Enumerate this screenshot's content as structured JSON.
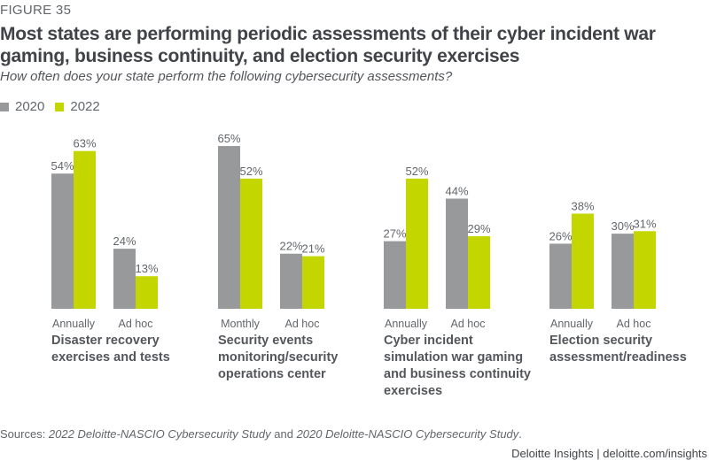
{
  "figure_label": "FIGURE 35",
  "title": "Most states are performing periodic assessments of their cyber incident war gaming, business continuity, and election security exercises",
  "subtitle": "How often does your state perform the following cybersecurity assessments?",
  "colors": {
    "2020": "#97999b",
    "2022": "#c4d600",
    "text": "#63666a"
  },
  "legend": [
    {
      "label": "2020",
      "color": "#97999b"
    },
    {
      "label": "2022",
      "color": "#c4d600"
    }
  ],
  "sources": {
    "prefix": "Sources: ",
    "study1": "2022 Deloitte-NASCIO Cybersecurity Study",
    "joiner": " and ",
    "study2": "2020 Deloitte-NASCIO Cybersecurity Study",
    "suffix": "."
  },
  "credit": "Deloitte Insights | deloitte.com/insights",
  "chart_data": {
    "type": "bar",
    "title": "Most states are performing periodic assessments of their cyber incident war gaming, business continuity, and election security exercises",
    "subtitle": "How often does your state perform the following cybersecurity assessments?",
    "xlabel": "",
    "ylabel": "",
    "ylim": [
      0,
      65
    ],
    "grid": false,
    "legend_position": "top-left",
    "value_format": "percent",
    "series_names": [
      "2020",
      "2022"
    ],
    "groups": [
      {
        "label": "Disaster recovery exercises and tests",
        "categories": [
          {
            "label": "Annually",
            "values": {
              "2020": 54,
              "2022": 63
            }
          },
          {
            "label": "Ad hoc",
            "values": {
              "2020": 24,
              "2022": 13
            }
          }
        ]
      },
      {
        "label": "Security events monitoring/security operations center",
        "categories": [
          {
            "label": "Monthly",
            "values": {
              "2020": 65,
              "2022": 52
            }
          },
          {
            "label": "Ad hoc",
            "values": {
              "2020": 22,
              "2022": 21
            }
          }
        ]
      },
      {
        "label": "Cyber incident simulation war gaming and business continuity exercises",
        "categories": [
          {
            "label": "Annually",
            "values": {
              "2020": 27,
              "2022": 52
            }
          },
          {
            "label": "Ad hoc",
            "values": {
              "2020": 44,
              "2022": 29
            }
          }
        ]
      },
      {
        "label": "Election security assessment/readiness",
        "categories": [
          {
            "label": "Annually",
            "values": {
              "2020": 26,
              "2022": 38
            }
          },
          {
            "label": "Ad hoc",
            "values": {
              "2020": 30,
              "2022": 31
            }
          }
        ]
      }
    ]
  }
}
